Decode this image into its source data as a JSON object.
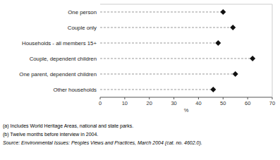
{
  "chart_data": {
    "type": "dot",
    "orientation": "horizontal",
    "categories": [
      "One person",
      "Couple only",
      "Households - all members 15+",
      "Couple, dependent children",
      "One parent, dependent children",
      "Other households"
    ],
    "values": [
      50,
      54,
      48,
      62,
      55,
      46
    ],
    "color": "#111111",
    "marker": "diamond",
    "line_style": "dashed",
    "xlabel": "%",
    "xlim": [
      0,
      70
    ],
    "xticks": [
      0,
      10,
      20,
      30,
      40,
      50,
      60,
      70
    ],
    "grid": false,
    "annotations": [
      "(a) Includes World Heritage Areas, national and state parks.",
      "(b) Twelve months before interview in 2004.",
      "Source: Environmental Issues: Peoples Views and Practices, March 2004 (cat. no. 4602.0)."
    ]
  }
}
